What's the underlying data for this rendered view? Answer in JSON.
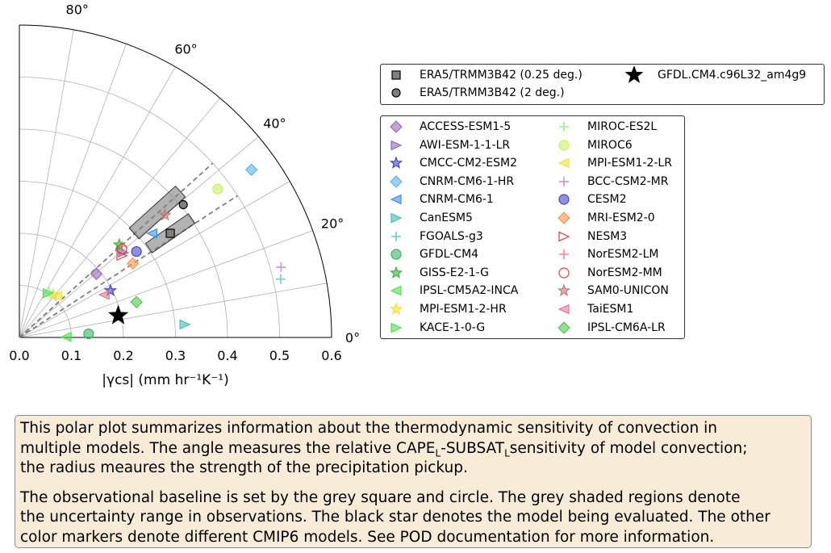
{
  "caption": {
    "para1_lines": [
      "This polar plot summarizes information about the thermodynamic sensitivity of convection in",
      "multiple models. The angle measures the relative CAPE_L-SUBSAT_Lsensitivity of model convection;",
      "the radius meaures the strength of the precipitation pickup."
    ],
    "para2_lines": [
      "The observational baseline is set by the grey square and circle. The grey shaded regions denote",
      "the uncertainty range in observations. The black star denotes the model being evaluated. The other",
      "color markers denote different CMIP6 models. See POD documentation for more information."
    ]
  },
  "chart_data": {
    "type": "scatter",
    "projection": "polar-quadrant",
    "xlabel": "|γcs| (mm hr⁻¹K⁻¹)",
    "radial_ticks": [
      "0.0",
      "0.1",
      "0.2",
      "0.3",
      "0.4",
      "0.5",
      "0.6"
    ],
    "radial_lim": [
      0,
      0.6
    ],
    "angular_ticks": [
      "0°",
      "20°",
      "40°",
      "60°",
      "80°"
    ],
    "angular_lim": [
      0,
      90
    ],
    "grid": true,
    "observation_sector_lines_deg": [
      33,
      42
    ],
    "observations": [
      {
        "name": "ERA5/TRMM3B42 (0.25 deg.)",
        "marker": "square",
        "color": "#7f7f7f",
        "x": 0.29,
        "y": 0.2
      },
      {
        "name": "ERA5/TRMM3B42 (2 deg.)",
        "marker": "circle",
        "color": "#7f7f7f",
        "x": 0.315,
        "y": 0.255
      }
    ],
    "uncertainty_regions": [
      {
        "name": "ERA5/TRMM3B42 (0.25 deg.)",
        "x": 0.29,
        "y": 0.2,
        "along_half": 0.05,
        "across_half": 0.011
      },
      {
        "name": "ERA5/TRMM3B42 (2 deg.)",
        "x": 0.265,
        "y": 0.24,
        "along_half": 0.06,
        "across_half": 0.014
      }
    ],
    "evaluated_model": {
      "name": "GFDL.CM4.c96L32_am4g9",
      "marker": "star",
      "color": "#000000",
      "x": 0.19,
      "y": 0.042
    },
    "series": [
      {
        "name": "ACCESS-ESM1-5",
        "marker": "diamond",
        "color": "#9467bd",
        "x": 0.148,
        "y": 0.122
      },
      {
        "name": "AWI-ESM-1-1-LR",
        "marker": "triangle-right-filled",
        "color": "#9467bd",
        "x": 0.2,
        "y": 0.163
      },
      {
        "name": "CMCC-CM2-ESM2",
        "marker": "star",
        "color": "#4646d2",
        "x": 0.175,
        "y": 0.09
      },
      {
        "name": "CNRM-CM6-1-HR",
        "marker": "diamond",
        "color": "#5ab4f0",
        "x": 0.446,
        "y": 0.322
      },
      {
        "name": "CNRM-CM6-1",
        "marker": "triangle-left",
        "color": "#3f8fef",
        "x": 0.255,
        "y": 0.2
      },
      {
        "name": "CanESM5",
        "marker": "triangle-right",
        "color": "#40c0b8",
        "x": 0.318,
        "y": 0.025
      },
      {
        "name": "FGOALS-g3",
        "marker": "plus",
        "color": "#40c0b8",
        "x": 0.502,
        "y": 0.112
      },
      {
        "name": "GFDL-CM4",
        "marker": "circle",
        "color": "#3cb464",
        "x": 0.133,
        "y": 0.007
      },
      {
        "name": "GISS-E2-1-G",
        "marker": "star",
        "color": "#3cb43c",
        "x": 0.192,
        "y": 0.178
      },
      {
        "name": "IPSL-CM5A2-INCA",
        "marker": "triangle-left",
        "color": "#50e050",
        "x": 0.09,
        "y": 0.001
      },
      {
        "name": "MPI-ESM1-2-HR",
        "marker": "star",
        "color": "#f5e040",
        "x": 0.065,
        "y": 0.082
      },
      {
        "name": "KACE-1-0-G",
        "marker": "triangle-right",
        "color": "#50e050",
        "x": 0.055,
        "y": 0.085
      },
      {
        "name": "MIROC-ES2L",
        "marker": "plus",
        "color": "#78f078",
        "x": 0.057,
        "y": 0.088
      },
      {
        "name": "MIROC6",
        "marker": "circle",
        "color": "#c8f060",
        "x": 0.381,
        "y": 0.285
      },
      {
        "name": "MPI-ESM1-2-LR",
        "marker": "triangle-left",
        "color": "#f5e040",
        "x": 0.072,
        "y": 0.08
      },
      {
        "name": "BCC-CSM2-MR",
        "marker": "plus",
        "color": "#b478c8",
        "x": 0.503,
        "y": 0.135
      },
      {
        "name": "CESM2",
        "marker": "circle",
        "color": "#4646c8",
        "x": 0.225,
        "y": 0.165
      },
      {
        "name": "MRI-ESM2-0",
        "marker": "diamond",
        "color": "#fa9646",
        "x": 0.218,
        "y": 0.142
      },
      {
        "name": "NESM3",
        "marker": "triangle-right",
        "color": "#e03c3c",
        "x": 0.197,
        "y": 0.157
      },
      {
        "name": "NorESM2-LM",
        "marker": "plus",
        "color": "#f06464",
        "x": 0.197,
        "y": 0.175
      },
      {
        "name": "NorESM2-MM",
        "marker": "circle",
        "color": "#e03c3c",
        "x": 0.197,
        "y": 0.17
      },
      {
        "name": "SAM0-UNICON",
        "marker": "star",
        "color": "#c87878",
        "x": 0.28,
        "y": 0.235
      },
      {
        "name": "TaiESM1",
        "marker": "triangle-left",
        "color": "#e67896",
        "x": 0.163,
        "y": 0.082
      },
      {
        "name": "IPSL-CM6A-LR",
        "marker": "diamond",
        "color": "#50c850",
        "x": 0.225,
        "y": 0.068
      }
    ]
  }
}
